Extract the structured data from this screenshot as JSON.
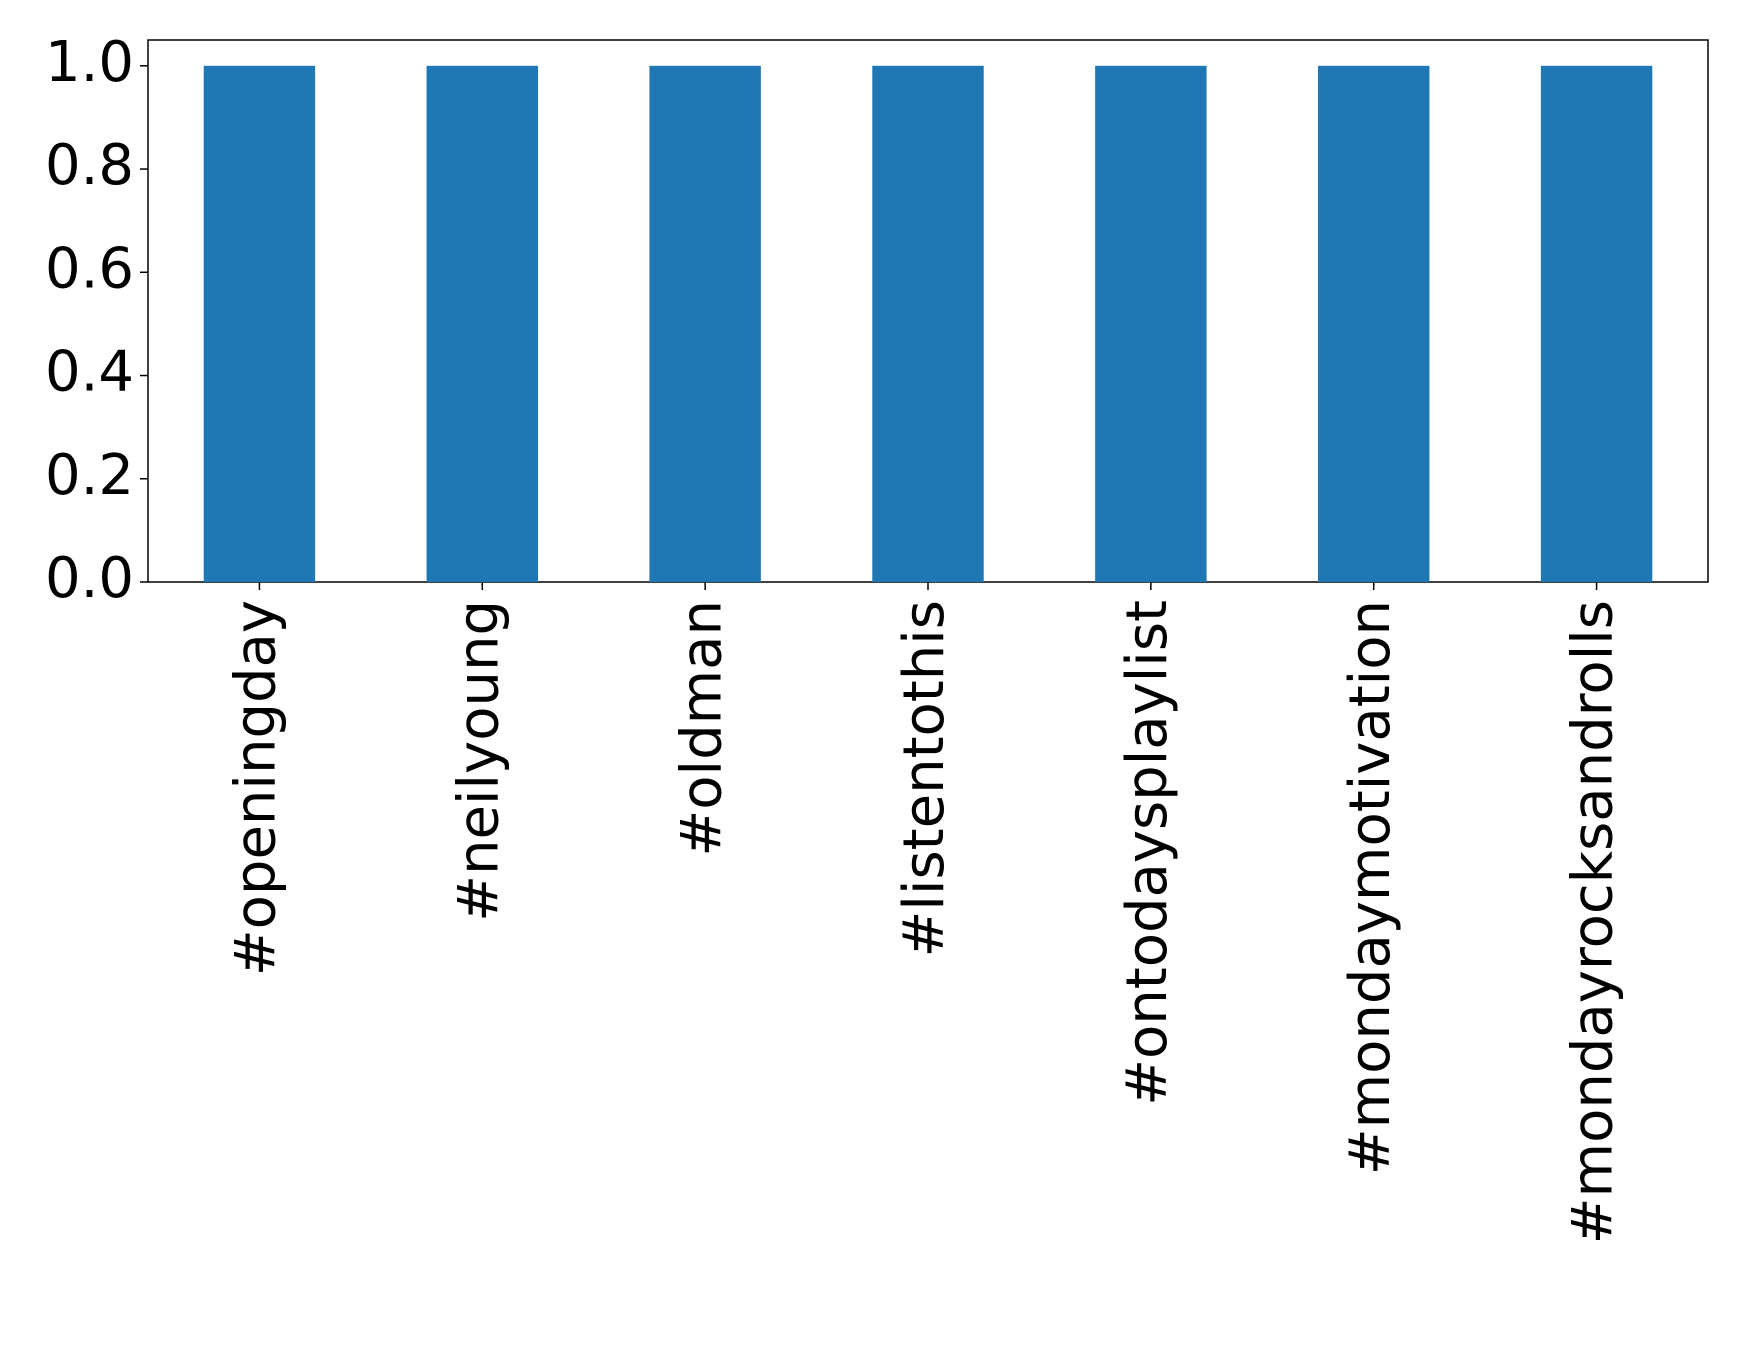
{
  "chart_data": {
    "type": "bar",
    "categories": [
      "#openingday",
      "#neilyoung",
      "#oldman",
      "#listentothis",
      "#ontodaysplaylist",
      "#mondaymotivation",
      "#mondayrocksandrolls"
    ],
    "values": [
      1,
      1,
      1,
      1,
      1,
      1,
      1
    ],
    "color": "#1f77b4",
    "ylim": [
      0,
      1.05
    ],
    "yticks": [
      {
        "value": 0,
        "label": "0.0"
      },
      0.2,
      0.4,
      0.6,
      0.8,
      {
        "value": 1,
        "label": "1.0"
      }
    ],
    "grid": false
  }
}
